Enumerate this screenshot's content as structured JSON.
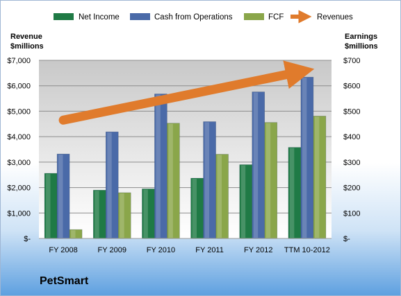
{
  "chart_data": {
    "type": "bar",
    "title": "",
    "categories": [
      "FY 2008",
      "FY 2009",
      "FY 2010",
      "FY 2011",
      "FY 2012",
      "TTM 10-2012"
    ],
    "series": [
      {
        "name": "Net Income",
        "axis": "right",
        "color": "#1f7a45",
        "values": [
          256,
          190,
          195,
          237,
          290,
          358
        ]
      },
      {
        "name": "Cash from Operations",
        "axis": "right",
        "color": "#4a6aa8",
        "values": [
          332,
          419,
          568,
          459,
          576,
          634
        ]
      },
      {
        "name": "FCF",
        "axis": "right",
        "color": "#8aa64a",
        "values": [
          35,
          180,
          453,
          331,
          456,
          481
        ]
      },
      {
        "name": "Revenues",
        "axis": "left",
        "type": "trend-arrow",
        "color": "#e07b2c",
        "values": [
          4650,
          5000,
          5300,
          5650,
          6050,
          6550
        ]
      }
    ],
    "left_axis": {
      "label": "Revenue $millions",
      "label_lines": [
        "Revenue",
        "$millions"
      ],
      "ylim": [
        0,
        7000
      ],
      "ticks": [
        "$-",
        "$1,000",
        "$2,000",
        "$3,000",
        "$4,000",
        "$5,000",
        "$6,000",
        "$7,000"
      ]
    },
    "right_axis": {
      "label": "Earnings $millions",
      "label_lines": [
        "Earnings",
        "$millions"
      ],
      "ylim": [
        0,
        700
      ],
      "ticks": [
        "$-",
        "$100",
        "$200",
        "$300",
        "$400",
        "$500",
        "$600",
        "$700"
      ]
    },
    "legend_position": "top",
    "grid": true
  },
  "company": "PetSmart"
}
